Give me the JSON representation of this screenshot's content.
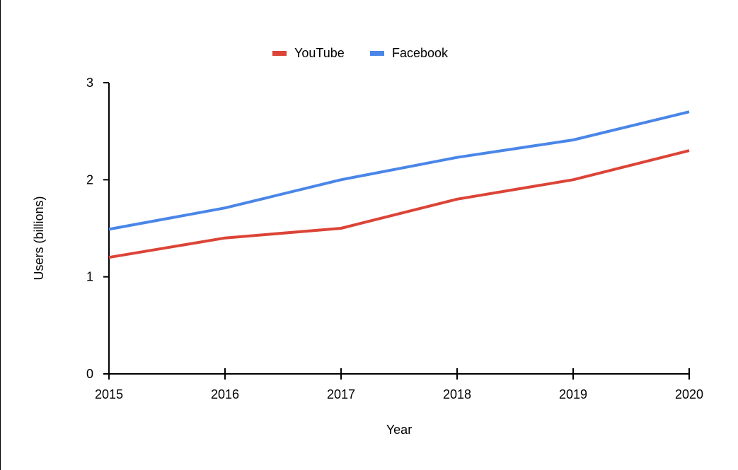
{
  "chart_data": {
    "type": "line",
    "title": "",
    "xlabel": "Year",
    "ylabel": "Users (billions)",
    "x": [
      "2015",
      "2016",
      "2017",
      "2018",
      "2019",
      "2020"
    ],
    "ylim": [
      0,
      3
    ],
    "yticks": [
      "0",
      "1",
      "2",
      "3"
    ],
    "grid": false,
    "legend_position": "top-center",
    "series": [
      {
        "name": "YouTube",
        "color": "#db4437",
        "values": [
          1.2,
          1.4,
          1.5,
          1.8,
          2.0,
          2.3
        ]
      },
      {
        "name": "Facebook",
        "color": "#4a86e8",
        "values": [
          1.49,
          1.71,
          2.0,
          2.23,
          2.41,
          2.7
        ]
      }
    ]
  }
}
